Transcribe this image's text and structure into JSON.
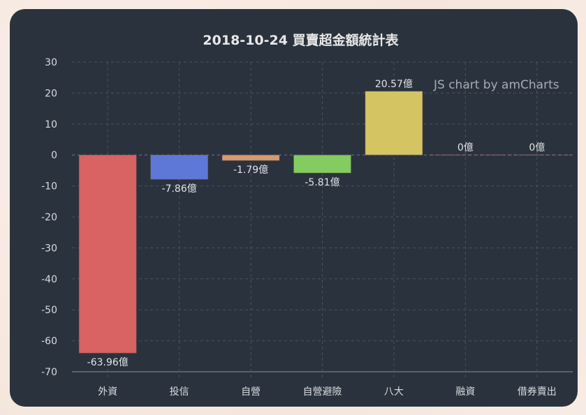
{
  "chart_data": {
    "type": "bar",
    "title": "2018-10-24 買賣超金額統計表",
    "xlabel": "",
    "ylabel": "",
    "ylim": [
      -70,
      30
    ],
    "yticks": [
      30,
      20,
      10,
      0,
      -10,
      -20,
      -30,
      -40,
      -50,
      -60,
      -70
    ],
    "grid": true,
    "categories": [
      "外資",
      "投信",
      "自營",
      "自營避險",
      "八大",
      "融資",
      "借券賣出"
    ],
    "values": [
      -63.96,
      -7.86,
      -1.79,
      -5.81,
      20.57,
      0,
      0
    ],
    "value_labels": [
      "-63.96億",
      "-7.86億",
      "-1.79億",
      "-5.81億",
      "20.57億",
      "0億",
      "0億"
    ],
    "colors": [
      "#d96262",
      "#5e78d8",
      "#d89a70",
      "#82cc60",
      "#d4c562",
      "#c96a6a",
      "#c96a6a"
    ],
    "unit": "億"
  },
  "credit": "JS chart by amCharts",
  "theme": {
    "panel_bg": "#2a323d",
    "grid_color": "#4a525e",
    "text_color": "#d9dce0"
  }
}
